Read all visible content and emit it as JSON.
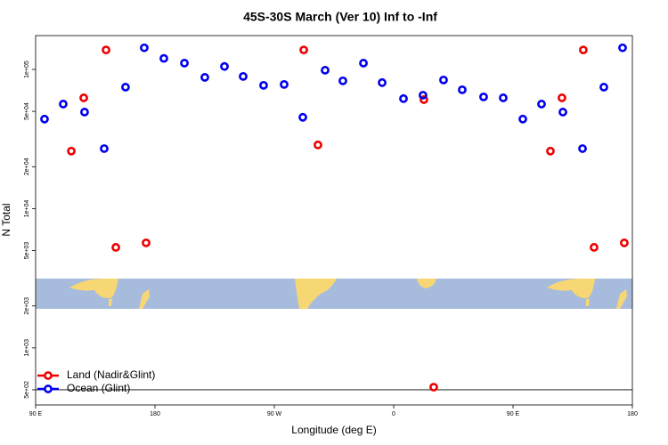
{
  "chart_data": {
    "type": "scatter",
    "title": "45S-30S March (Ver 10)   Inf to -Inf",
    "x_label": "Longitude (deg E)",
    "y_label": "N Total",
    "log_y": true,
    "legend": "bottom-left",
    "xlim": [
      90,
      540
    ],
    "ylim": [
      389,
      175000
    ],
    "xticks": [
      {
        "value": 90,
        "label": "90 E"
      },
      180,
      {
        "value": 270,
        "label": "90 W"
      },
      {
        "value": 360,
        "label": "0"
      },
      {
        "value": 450,
        "label": "90 E"
      },
      {
        "value": 540,
        "label": "180"
      }
    ],
    "yticks": [
      {
        "value": 500,
        "label": "5e+02"
      },
      {
        "value": 1000,
        "label": "1e+03"
      },
      {
        "value": 2000,
        "label": "2e+03"
      },
      {
        "value": 5000,
        "label": "5e+03"
      },
      {
        "value": 10000,
        "label": "1e+04"
      },
      {
        "value": 20000,
        "label": "2e+04"
      },
      {
        "value": 50000,
        "label": "5e+04"
      },
      {
        "value": 100000,
        "label": "1e+05"
      }
    ],
    "hline": 500,
    "series": [
      {
        "name": "Land (Nadir&Glint)",
        "color": "#ee0000",
        "x": [
          116.9,
          126.3,
          143.1,
          150.5,
          173.3,
          292.2,
          302.9,
          382.8,
          390.2,
          478.2,
          486.9,
          503.0,
          511.1,
          533.9
        ],
        "values": [
          25900,
          62500,
          138000,
          5270,
          5680,
          138000,
          28700,
          60700,
          522,
          25900,
          62500,
          138000,
          5270,
          5680
        ]
      },
      {
        "name": "Ocean (Glint)",
        "color": "#0000ee",
        "x": [
          96.7,
          110.8,
          126.9,
          141.7,
          157.8,
          171.9,
          186.7,
          202.2,
          217.6,
          232.4,
          246.5,
          261.9,
          277.4,
          291.5,
          308.3,
          321.7,
          337.2,
          351.3,
          367.4,
          382.1,
          397.6,
          411.7,
          427.8,
          442.6,
          457.4,
          471.5,
          487.6,
          502.4,
          518.5,
          532.6
        ],
        "values": [
          44000,
          56400,
          49400,
          27000,
          74600,
          143000,
          120000,
          111000,
          87700,
          105000,
          89100,
          76900,
          78000,
          45300,
          98700,
          82800,
          111000,
          80400,
          61700,
          65300,
          84000,
          71400,
          63500,
          62500,
          44000,
          56400,
          49400,
          27000,
          74600,
          143000
        ]
      }
    ]
  }
}
